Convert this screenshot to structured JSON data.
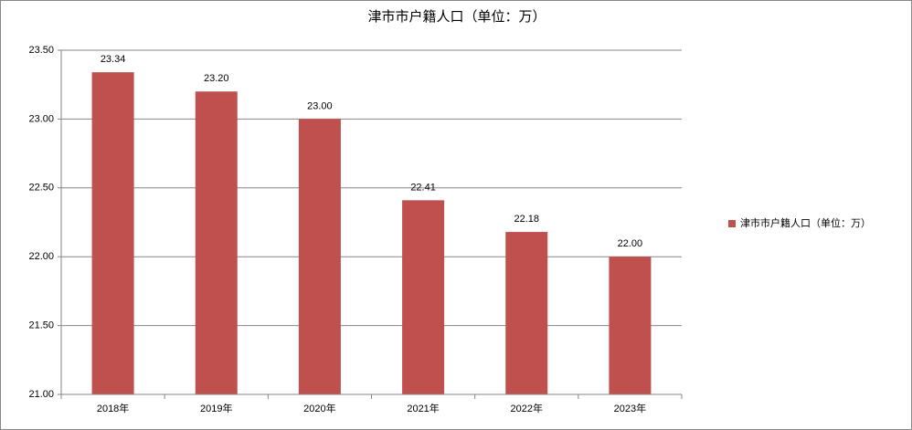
{
  "chart_data": {
    "type": "bar",
    "title": "津市市户籍人口（单位：万）",
    "categories": [
      "2018年",
      "2019年",
      "2020年",
      "2021年",
      "2022年",
      "2023年"
    ],
    "series": [
      {
        "name": "津市市户籍人口（单位：万）",
        "color": "#c0504d",
        "values": [
          23.34,
          23.2,
          23.0,
          22.41,
          22.18,
          22.0
        ],
        "value_labels": [
          "23.34",
          "23.20",
          "23.00",
          "22.41",
          "22.18",
          "22.00"
        ]
      }
    ],
    "ylim": [
      21,
      23.5
    ],
    "yticks": [
      {
        "value": 21,
        "label": "21.00"
      },
      {
        "value": 21.5,
        "label": "21.50"
      },
      {
        "value": 22,
        "label": "22.00"
      },
      {
        "value": 22.5,
        "label": "22.50"
      },
      {
        "value": 23,
        "label": "23.00"
      },
      {
        "value": 23.5,
        "label": "23.50"
      }
    ],
    "grid": true,
    "legend": "right"
  }
}
